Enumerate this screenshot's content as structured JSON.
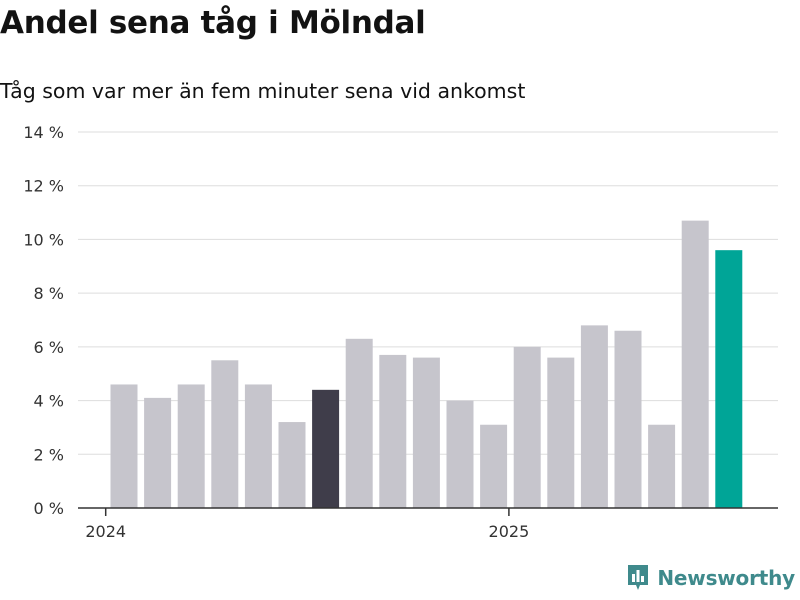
{
  "chart_data": {
    "type": "bar",
    "title": "Andel sena tåg i Mölndal",
    "subtitle": "Tåg som var mer än fem minuter sena vid ankomst",
    "xlabel": "",
    "ylabel": "",
    "ylim": [
      0,
      14
    ],
    "y_ticks": [
      {
        "value": 0,
        "label": "0 %"
      },
      {
        "value": 2,
        "label": "2 %"
      },
      {
        "value": 4,
        "label": "4 %"
      },
      {
        "value": 6,
        "label": "6 %"
      },
      {
        "value": 8,
        "label": "8 %"
      },
      {
        "value": 10,
        "label": "10 %"
      },
      {
        "value": 12,
        "label": "12 %"
      },
      {
        "value": 14,
        "label": "14 %"
      }
    ],
    "x_ticks": [
      {
        "index": 0,
        "label": "2024"
      },
      {
        "index": 12,
        "label": "2025"
      }
    ],
    "values": [
      4.6,
      4.1,
      4.6,
      5.5,
      4.6,
      3.2,
      4.4,
      6.3,
      5.7,
      5.6,
      4.0,
      3.1,
      6.0,
      5.6,
      6.8,
      6.6,
      3.1,
      10.7,
      9.6
    ],
    "highlight_indices": {
      "6": "dark",
      "18": "accent"
    },
    "grid": true,
    "legend": "none"
  },
  "colors": {
    "bar": "#c6c5cc",
    "bar_dark": "#3f3d4a",
    "bar_accent": "#00a597",
    "grid": "#dddddd",
    "axis": "#333333",
    "brand": "#3f8a8c"
  },
  "brand": {
    "name": "Newsworthy",
    "icon": "newsworthy-logo-icon"
  }
}
